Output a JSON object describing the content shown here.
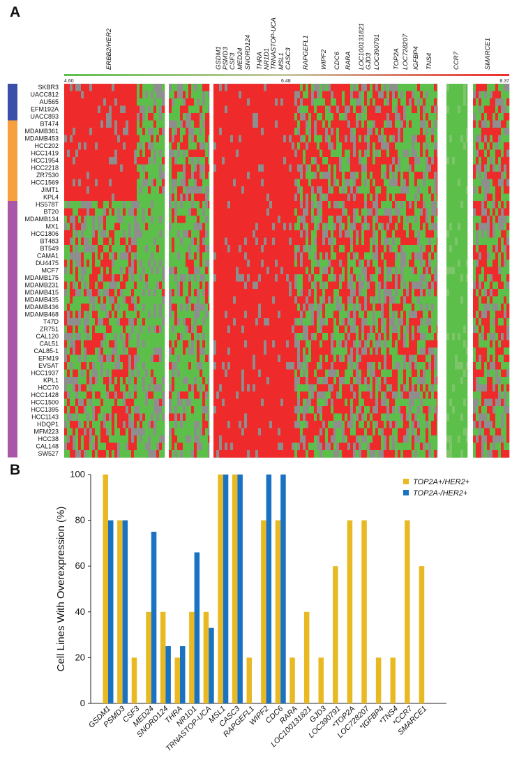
{
  "panel_a": {
    "letter": "A",
    "scale": {
      "min": "4.60",
      "mid": "6.48",
      "max": "8.37"
    },
    "colors": {
      "high": "#ee2a2a",
      "mid": "#8e8e8e",
      "low": "#5cbf4a",
      "subtype1": "#3b4fa8",
      "subtype2": "#f7a040",
      "subtype3": "#a957a8"
    },
    "gene_labels": [
      "ERBB2/HER2",
      "GSDM1",
      "PSMD3",
      "CSF3",
      "MED24",
      "SNORD124",
      "THRA",
      "NR1D1",
      "TRNASTOP-UCA",
      "MSL1",
      "CASC3",
      "RAPGEFL1",
      "WIPF2",
      "CDC6",
      "RARA",
      "LOC100131821",
      "GJD3",
      "LOC390791",
      "TOP2A",
      "LOC728207",
      "IGFBP4",
      "TNS4",
      "CCR7",
      "SMARCE1"
    ],
    "cell_lines": [
      "SKBR3",
      "UACC812",
      "AU565",
      "EFM192A",
      "UACC893",
      "BT474",
      "MDAMB361",
      "MDAMB453",
      "HCC202",
      "HCC1419",
      "HCC1954",
      "HCC2218",
      "ZR7530",
      "HCC1569",
      "JIMT1",
      "KPL4",
      "HS578T",
      "BT20",
      "MDAMB134",
      "MX1",
      "HCC1806",
      "BT483",
      "BT549",
      "CAMA1",
      "DU4475",
      "MCF7",
      "MDAMB175",
      "MDAMB231",
      "MDAMB415",
      "MDAMB435",
      "MDAMB436",
      "MDAMB468",
      "T47D",
      "ZR751",
      "CAL120",
      "CAL51",
      "CAL85-1",
      "EFM19",
      "EVSAT",
      "HCC1937",
      "KPL1",
      "HCC70",
      "HCC1428",
      "HCC1500",
      "HCC1395",
      "HCC1143",
      "HDQP1",
      "MFM223",
      "HCC38",
      "CAL148",
      "SW527"
    ],
    "group_sizes": [
      5,
      11,
      35
    ]
  },
  "panel_b": {
    "letter": "B"
  },
  "chart_data": {
    "type": "bar",
    "title": "",
    "xlabel": "",
    "ylabel": "Cell Lines With Overexpression (%)",
    "ylim": [
      0,
      100
    ],
    "yticks": [
      "0",
      "20",
      "40",
      "60",
      "80",
      "100"
    ],
    "categories": [
      "GSDM1",
      "PSMD3",
      "CSF3",
      "MED24",
      "SNORD124",
      "THRA",
      "NR1D1",
      "TRNASTOP-UCA",
      "MSL1",
      "CASC3",
      "RAPGEFL1",
      "WIPF2",
      "CDC6",
      "RARA",
      "LOC100131821",
      "GJD3",
      "LOC390791",
      "*TOP2A",
      "LOC728207",
      "*IGFBP4",
      "*TNS4",
      "*CCR7",
      "SMARCE1"
    ],
    "series": [
      {
        "name": "TOP2A+/HER2+",
        "color": "#e8b923",
        "values": [
          100,
          80,
          20,
          40,
          40,
          20,
          40,
          40,
          100,
          100,
          20,
          80,
          80,
          20,
          40,
          20,
          60,
          80,
          80,
          20,
          20,
          80,
          60
        ]
      },
      {
        "name": "TOP2A-/HER2+",
        "color": "#1a73c2",
        "values": [
          80,
          80,
          0,
          75,
          25,
          25,
          66,
          33,
          100,
          100,
          0,
          100,
          100,
          0,
          0,
          0,
          0,
          0,
          0,
          0,
          0,
          0,
          0
        ]
      }
    ],
    "legend_position": "top-right",
    "grid": false
  }
}
